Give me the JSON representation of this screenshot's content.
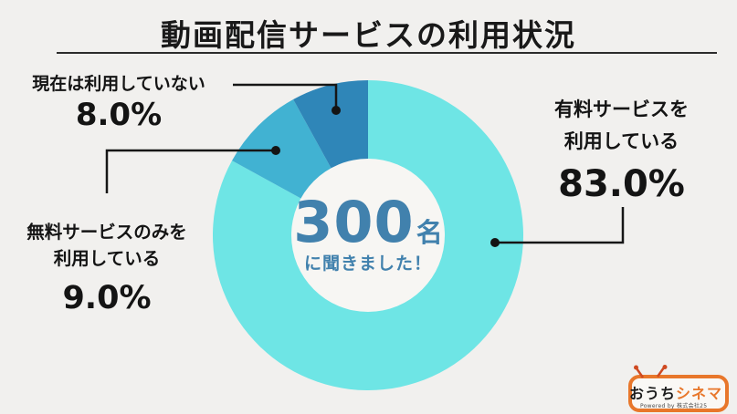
{
  "title": "動画配信サービスの利用状況",
  "chart_data": {
    "type": "pie",
    "donut": true,
    "title": "動画配信サービスの利用状況",
    "start_angle_deg": 0,
    "direction": "clockwise",
    "total_respondents": 300,
    "center_text": "300名に聞きました！",
    "segments": [
      {
        "label": "有料サービスを利用している",
        "value": 83.0,
        "display": "83.0%",
        "color": "#6ee5e5"
      },
      {
        "label": "無料サービスのみを利用している",
        "value": 9.0,
        "display": "9.0%",
        "color": "#41b2d2"
      },
      {
        "label": "現在は利用していない",
        "value": 8.0,
        "display": "8.0%",
        "color": "#2f86b8"
      }
    ]
  },
  "center": {
    "number": "300",
    "unit": "名",
    "caption": "に聞きました！",
    "color": "#4181ad"
  },
  "labels": {
    "not_using": {
      "line1": "現在は利用していない",
      "percent": "8.0%"
    },
    "free_only": {
      "line1": "無料サービスのみを",
      "line2": "利用している",
      "percent": "9.0%"
    },
    "paid": {
      "line1": "有料サービスを",
      "line2": "利用している",
      "percent": "83.0%"
    }
  },
  "logo": {
    "name_black": "おうち",
    "name_orange": "シネマ",
    "powered_by": "Powered by 株式会社25",
    "accent": "#e8772b"
  },
  "colors": {
    "background": "#f1f0ee",
    "donut_hole": "#f7f6f3",
    "leader_line": "#161616",
    "title_text": "#191919"
  }
}
